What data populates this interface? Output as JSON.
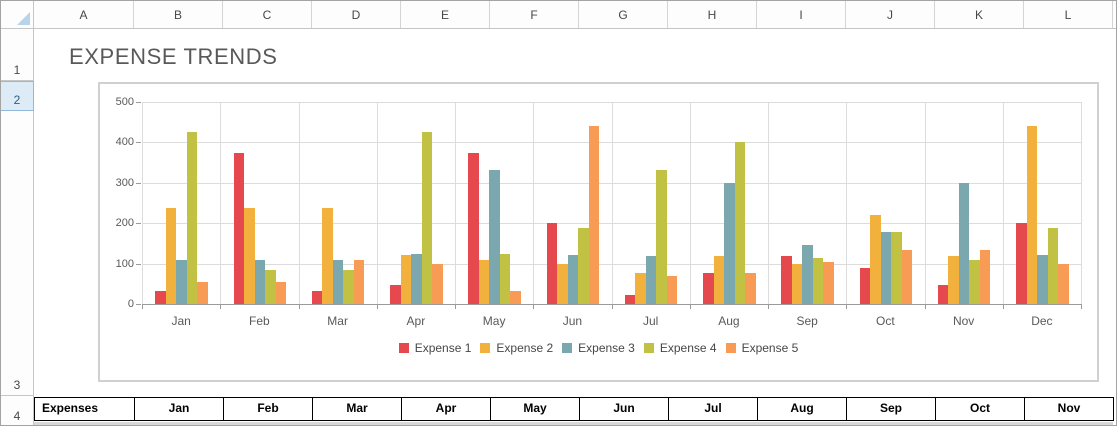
{
  "sheet": {
    "title": "EXPENSE TRENDS",
    "column_headers": [
      "A",
      "B",
      "C",
      "D",
      "E",
      "F",
      "G",
      "H",
      "I",
      "J",
      "K",
      "L"
    ],
    "row_headers": [
      "1",
      "2",
      "3",
      "4"
    ],
    "selected_row": "2"
  },
  "chart_data": {
    "type": "bar",
    "title": "",
    "categories": [
      "Jan",
      "Feb",
      "Mar",
      "Apr",
      "May",
      "Jun",
      "Jul",
      "Aug",
      "Sep",
      "Oct",
      "Nov",
      "Dec"
    ],
    "series": [
      {
        "name": "Expense 1",
        "color": "#e5494d",
        "values": [
          33,
          375,
          33,
          46,
          375,
          200,
          22,
          78,
          120,
          90,
          46,
          200
        ]
      },
      {
        "name": "Expense 2",
        "color": "#f2b03c",
        "values": [
          238,
          238,
          238,
          122,
          110,
          100,
          78,
          120,
          100,
          220,
          120,
          440
        ]
      },
      {
        "name": "Expense 3",
        "color": "#7ba7af",
        "values": [
          110,
          110,
          110,
          125,
          333,
          122,
          120,
          300,
          145,
          178,
          300,
          122
        ]
      },
      {
        "name": "Expense 4",
        "color": "#c1c144",
        "values": [
          425,
          85,
          85,
          425,
          125,
          188,
          333,
          400,
          115,
          178,
          110,
          188
        ]
      },
      {
        "name": "Expense 5",
        "color": "#f89c55",
        "values": [
          55,
          55,
          110,
          100,
          33,
          440,
          70,
          78,
          105,
          135,
          135,
          100
        ]
      }
    ],
    "ylim": [
      0,
      500
    ],
    "yticks": [
      "0",
      "100",
      "200",
      "300",
      "400",
      "500"
    ],
    "ytick_interval": 100,
    "grid": true,
    "legend_position": "bottom"
  },
  "bottom_table": {
    "cells": [
      "Expenses",
      "Jan",
      "Feb",
      "Mar",
      "Apr",
      "May",
      "Jun",
      "Jul",
      "Aug",
      "Sep",
      "Oct",
      "Nov"
    ]
  },
  "colors": {
    "selected_row_bg": "#dcebf6",
    "selected_row_border": "#8fbadd",
    "grid_line": "#dcdcdc",
    "axis_line": "#9b9b9b",
    "header_text": "#474747",
    "title_text": "#595959",
    "table_border": "#000000"
  }
}
